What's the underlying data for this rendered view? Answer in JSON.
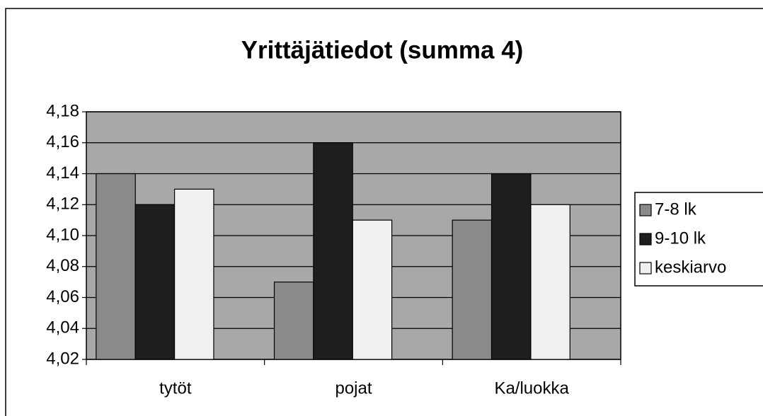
{
  "chart_data": {
    "type": "bar",
    "title": "Yrittäjätiedot (summa 4)",
    "categories": [
      "tytöt",
      "pojat",
      "Ka/luokka"
    ],
    "series": [
      {
        "name": "7-8 lk",
        "color": "#8a8a8a",
        "values": [
          4.14,
          4.07,
          4.11
        ]
      },
      {
        "name": "9-10 lk",
        "color": "#1e1e1e",
        "values": [
          4.12,
          4.16,
          4.14
        ]
      },
      {
        "name": "keskiarvo",
        "color": "#f0f0f0",
        "values": [
          4.13,
          4.11,
          4.12
        ]
      }
    ],
    "ylim": [
      4.02,
      4.18
    ],
    "yticks": [
      {
        "value": 4.02,
        "label": "4,02"
      },
      {
        "value": 4.04,
        "label": "4,04"
      },
      {
        "value": 4.06,
        "label": "4,06"
      },
      {
        "value": 4.08,
        "label": "4,08"
      },
      {
        "value": 4.1,
        "label": "4,10"
      },
      {
        "value": 4.12,
        "label": "4,12"
      },
      {
        "value": 4.14,
        "label": "4,14"
      },
      {
        "value": 4.16,
        "label": "4,16"
      },
      {
        "value": 4.18,
        "label": "4,18"
      }
    ],
    "grid": true,
    "legend": "right"
  }
}
